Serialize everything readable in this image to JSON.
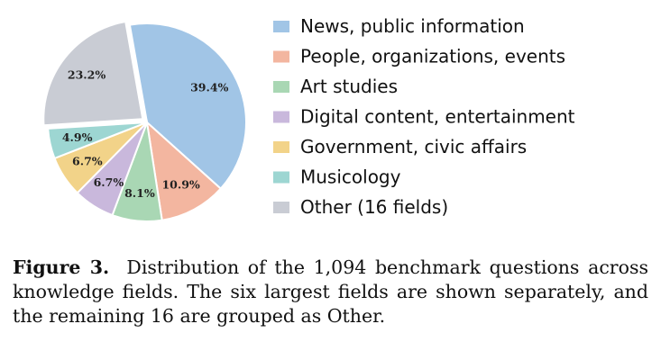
{
  "chart_data": {
    "type": "pie",
    "slices": [
      {
        "label": "News, public information",
        "value": 39.4,
        "display": "39.4%",
        "color": "#a1c5e6"
      },
      {
        "label": "People, organizations, events",
        "value": 10.9,
        "display": "10.9%",
        "color": "#f3b6a0"
      },
      {
        "label": "Art studies",
        "value": 8.1,
        "display": "8.1%",
        "color": "#a9d7b4"
      },
      {
        "label": "Digital content, entertainment",
        "value": 6.7,
        "display": "6.7%",
        "color": "#c9b8dc"
      },
      {
        "label": "Government, civic affairs",
        "value": 6.7,
        "display": "6.7%",
        "color": "#f2d389"
      },
      {
        "label": "Musicology",
        "value": 4.9,
        "display": "4.9%",
        "color": "#9dd6d2"
      },
      {
        "label": "Other (16 fields)",
        "value": 23.2,
        "display": "23.2%",
        "color": "#c9ccd4"
      }
    ],
    "legend_position": "right"
  },
  "caption": {
    "label": "Figure 3.",
    "text": "Distribution of the 1,094 benchmark questions across knowledge fields. The six largest fields are shown separately, and the remaining 16 are grouped as Other."
  }
}
